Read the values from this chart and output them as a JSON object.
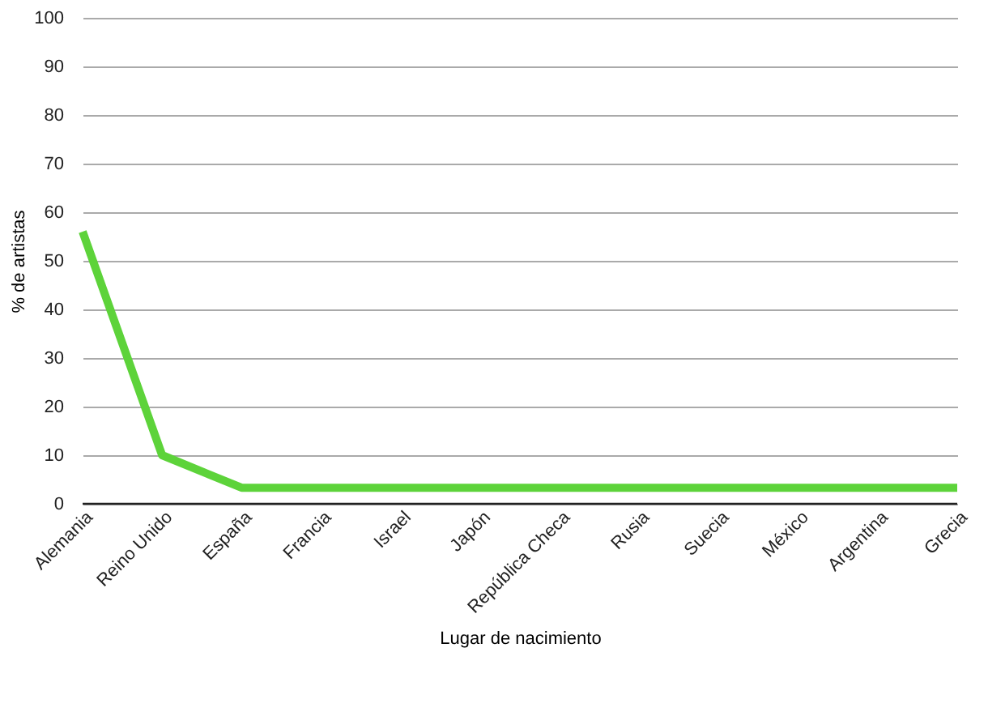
{
  "chart_data": {
    "type": "line",
    "xlabel": "Lugar de nacimiento",
    "ylabel": "% de artistas",
    "categories": [
      "Alemania",
      "Reino Unido",
      "España",
      "Francia",
      "Israel",
      "Japón",
      "República Checa",
      "Rusia",
      "Suecia",
      "México",
      "Argentina",
      "Grecia"
    ],
    "series": [
      {
        "color": "#5dd33a",
        "values": [
          56,
          10,
          3.3,
          3.3,
          3.3,
          3.3,
          3.3,
          3.3,
          3.3,
          3.3,
          3.3,
          3.3
        ]
      }
    ],
    "ylim": [
      0,
      100
    ],
    "yticks": [
      0,
      10,
      20,
      30,
      40,
      50,
      60,
      70,
      80,
      90,
      100
    ],
    "grid": "y",
    "legend": false,
    "marker": "none",
    "line_style": "solid"
  }
}
